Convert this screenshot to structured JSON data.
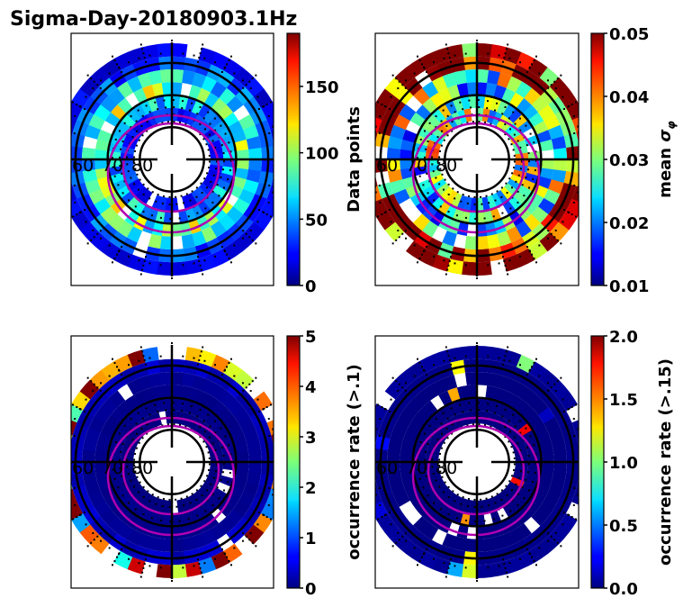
{
  "chart_data": {
    "type": "heatmap",
    "title": "Sigma-Day-20180903.1Hz",
    "projection": "polar (magnetic latitude / local time)",
    "latitude_labels": [
      "60",
      "70",
      "80"
    ],
    "latitude_circles": [
      60,
      70,
      80
    ],
    "grid": true,
    "panels": [
      {
        "id": "data-points",
        "position": "top-left",
        "colorbar": {
          "label": "Data points",
          "range": [
            0,
            190
          ],
          "ticks": [
            0,
            50,
            100,
            150
          ],
          "tick_labels": [
            "0",
            "50",
            "100",
            "150"
          ],
          "colormap": "jet"
        },
        "ring_values": [
          {
            "lat_from": 55,
            "lat_to": 58,
            "typical": 20
          },
          {
            "lat_from": 58,
            "lat_to": 62,
            "typical": 40
          },
          {
            "lat_from": 62,
            "lat_to": 66,
            "typical": 70
          },
          {
            "lat_from": 66,
            "lat_to": 70,
            "typical": 90
          },
          {
            "lat_from": 70,
            "lat_to": 74,
            "typical": 60
          },
          {
            "lat_from": 74,
            "lat_to": 78,
            "typical": 30
          }
        ]
      },
      {
        "id": "mean-sigma-phi",
        "position": "top-right",
        "colorbar": {
          "label": "mean σφ",
          "label_main": "mean ",
          "label_symbol": "σ",
          "label_sub": "φ",
          "range": [
            0.01,
            0.05
          ],
          "ticks": [
            0.01,
            0.02,
            0.03,
            0.04,
            0.05
          ],
          "tick_labels": [
            "0.01",
            "0.02",
            "0.03",
            "0.04",
            "0.05"
          ],
          "colormap": "jet"
        },
        "ring_values": [
          {
            "lat_from": 55,
            "lat_to": 58,
            "typical": 0.05
          },
          {
            "lat_from": 58,
            "lat_to": 62,
            "typical": 0.05
          },
          {
            "lat_from": 62,
            "lat_to": 66,
            "typical": 0.03
          },
          {
            "lat_from": 66,
            "lat_to": 70,
            "typical": 0.025
          },
          {
            "lat_from": 70,
            "lat_to": 74,
            "typical": 0.027
          },
          {
            "lat_from": 74,
            "lat_to": 78,
            "typical": 0.03
          }
        ]
      },
      {
        "id": "occurrence-rate-0.1",
        "position": "bottom-left",
        "colorbar": {
          "label": "occurrence rate (>.1)",
          "range": [
            0,
            5
          ],
          "ticks": [
            0,
            1,
            2,
            3,
            4,
            5
          ],
          "tick_labels": [
            "0",
            "1",
            "2",
            "3",
            "4",
            "5"
          ],
          "colormap": "jet"
        },
        "ring_values": [
          {
            "lat_from": 55,
            "lat_to": 58,
            "typical": 5
          },
          {
            "lat_from": 58,
            "lat_to": 62,
            "typical": 0.3
          },
          {
            "lat_from": 62,
            "lat_to": 66,
            "typical": 0.1
          },
          {
            "lat_from": 66,
            "lat_to": 70,
            "typical": 0.05
          },
          {
            "lat_from": 70,
            "lat_to": 74,
            "typical": 0.05
          },
          {
            "lat_from": 74,
            "lat_to": 78,
            "typical": 0.0
          }
        ]
      },
      {
        "id": "occurrence-rate-0.15",
        "position": "bottom-right",
        "colorbar": {
          "label": "occurrence rate (>.15)",
          "range": [
            0,
            2
          ],
          "ticks": [
            0,
            0.5,
            1.0,
            1.5,
            2.0
          ],
          "tick_labels": [
            "0.0",
            "0.5",
            "1.0",
            "1.5",
            "2.0"
          ],
          "colormap": "jet"
        },
        "ring_values": [
          {
            "lat_from": 55,
            "lat_to": 58,
            "typical": 0.05
          },
          {
            "lat_from": 58,
            "lat_to": 62,
            "typical": 0.02
          },
          {
            "lat_from": 62,
            "lat_to": 66,
            "typical": 0.0
          },
          {
            "lat_from": 66,
            "lat_to": 70,
            "typical": 0.0
          },
          {
            "lat_from": 70,
            "lat_to": 74,
            "typical": 0.0
          },
          {
            "lat_from": 74,
            "lat_to": 78,
            "typical": 0.0
          }
        ]
      }
    ],
    "overlays": {
      "auroral_oval_color": "#b000b0",
      "grid_color": "#000000",
      "station_dots_color": "#000000"
    }
  }
}
